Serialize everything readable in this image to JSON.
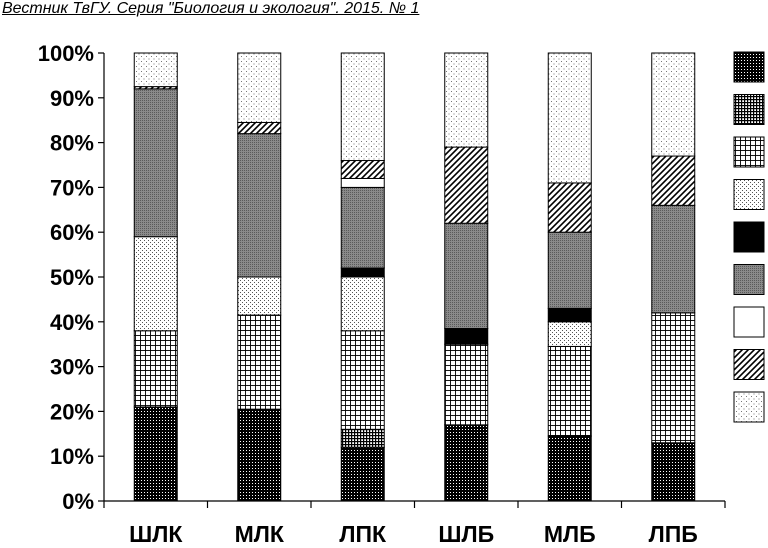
{
  "header": {
    "text": "Вестник ТвГУ. Серия \"Биология и экология\". 2015. № 1"
  },
  "chart_data": {
    "type": "bar",
    "stacked": true,
    "categories": [
      "ШЛК",
      "МЛК",
      "ЛПК",
      "ШЛБ",
      "МЛБ",
      "ЛПБ"
    ],
    "y_ticks": [
      "0%",
      "10%",
      "20%",
      "30%",
      "40%",
      "50%",
      "60%",
      "70%",
      "80%",
      "90%",
      "100%"
    ],
    "ylim": [
      0,
      100
    ],
    "legend_position": "right",
    "series": [
      {
        "pattern": "dark-dots",
        "values": [
          21,
          20.5,
          12,
          17,
          14.5,
          13
        ]
      },
      {
        "pattern": "dense-grid",
        "values": [
          0,
          0,
          4,
          0,
          0,
          0
        ]
      },
      {
        "pattern": "grid",
        "values": [
          17,
          21,
          22,
          18,
          20,
          29
        ]
      },
      {
        "pattern": "light-dots",
        "values": [
          21,
          8.5,
          12,
          0,
          5.5,
          0
        ]
      },
      {
        "pattern": "black",
        "values": [
          0,
          0,
          2,
          3.5,
          3,
          0
        ]
      },
      {
        "pattern": "gray",
        "values": [
          33,
          32,
          18,
          23.5,
          17,
          24
        ]
      },
      {
        "pattern": "white",
        "values": [
          0,
          0,
          2,
          0,
          0,
          0
        ]
      },
      {
        "pattern": "diagonal",
        "values": [
          0.5,
          2.5,
          4,
          17,
          11,
          11
        ]
      },
      {
        "pattern": "sparse-dots",
        "values": [
          7.5,
          15.5,
          24,
          21,
          29,
          23
        ]
      }
    ]
  }
}
